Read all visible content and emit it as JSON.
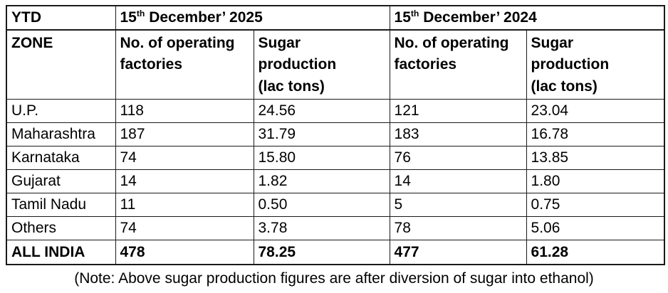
{
  "table": {
    "corner": {
      "ytd": "YTD",
      "zone": "ZONE"
    },
    "periods": [
      {
        "day": "15",
        "ordinal": "th",
        "rest": " December’ 2025"
      },
      {
        "day": "15",
        "ordinal": "th",
        "rest": " December’ 2024"
      }
    ],
    "subheaders": {
      "factories": "No. of operating\nfactories",
      "production": "Sugar\nproduction\n(lac tons)"
    },
    "rows": [
      {
        "zone": "U.P.",
        "f25": "118",
        "p25": "24.56",
        "f24": "121",
        "p24": "23.04"
      },
      {
        "zone": "Maharashtra",
        "f25": "187",
        "p25": "31.79",
        "f24": "183",
        "p24": "16.78"
      },
      {
        "zone": "Karnataka",
        "f25": "74",
        "p25": "15.80",
        "f24": "76",
        "p24": "13.85"
      },
      {
        "zone": "Gujarat",
        "f25": "14",
        "p25": "1.82",
        "f24": "14",
        "p24": "1.80"
      },
      {
        "zone": "Tamil Nadu",
        "f25": "11",
        "p25": "0.50",
        "f24": "5",
        "p24": "0.75"
      },
      {
        "zone": "Others",
        "f25": "74",
        "p25": "3.78",
        "f24": "78",
        "p24": "5.06"
      }
    ],
    "total": {
      "zone": "ALL INDIA",
      "f25": "478",
      "p25": "78.25",
      "f24": "477",
      "p24": "61.28"
    }
  },
  "note": "(Note: Above sugar production figures are after diversion of sugar into ethanol)",
  "colors": {
    "border": "#1a1a1a",
    "text": "#000000",
    "background": "#ffffff"
  }
}
